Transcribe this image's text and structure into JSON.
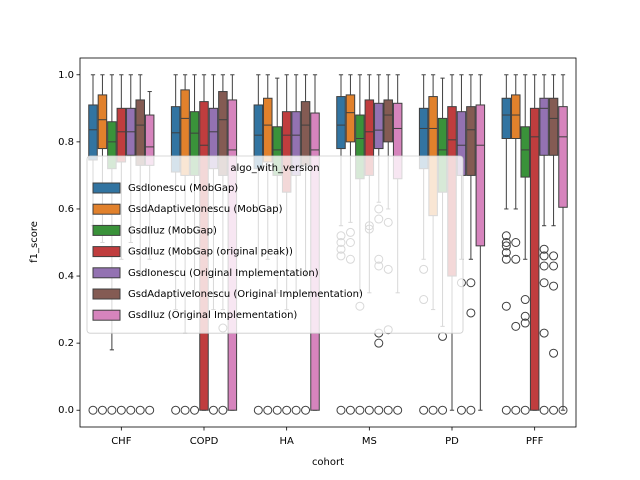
{
  "chart_data": {
    "type": "box",
    "xlabel": "cohort",
    "ylabel": "f1_score",
    "categories": [
      "CHF",
      "COPD",
      "HA",
      "MS",
      "PD",
      "PFF"
    ],
    "ylim": [
      -0.05,
      1.05
    ],
    "yticks": [
      {
        "value": 0,
        "label": "0.0"
      },
      {
        "value": 0.2,
        "label": "0.2"
      },
      {
        "value": 0.4,
        "label": "0.4"
      },
      {
        "value": 0.6,
        "label": "0.6"
      },
      {
        "value": 0.8,
        "label": "0.8"
      },
      {
        "value": 1.0,
        "label": "1.0"
      }
    ],
    "legend_title": "algo_with_version",
    "legend_loc": "center left",
    "series": [
      {
        "name": "GsdIonescu (MobGap)",
        "color": "#3274a1",
        "boxes": [
          {
            "whislo": 0.55,
            "q1": 0.746,
            "med": 0.836,
            "q3": 0.91,
            "whishi": 1.0,
            "fliers": [
              0
            ]
          },
          {
            "whislo": 0.3,
            "q1": 0.71,
            "med": 0.827,
            "q3": 0.905,
            "whishi": 1.0,
            "fliers": [
              0
            ]
          },
          {
            "whislo": 0.4,
            "q1": 0.72,
            "med": 0.82,
            "q3": 0.91,
            "whishi": 1.0,
            "fliers": [
              0
            ]
          },
          {
            "whislo": 0.55,
            "q1": 0.78,
            "med": 0.85,
            "q3": 0.935,
            "whishi": 1.0,
            "fliers": [
              0.52,
              0.5,
              0.48,
              0.46,
              0
            ]
          },
          {
            "whislo": 0.45,
            "q1": 0.72,
            "med": 0.84,
            "q3": 0.9,
            "whishi": 1.0,
            "fliers": [
              0.42,
              0.33,
              0
            ]
          },
          {
            "whislo": 0.6,
            "q1": 0.81,
            "med": 0.88,
            "q3": 0.93,
            "whishi": 1.0,
            "fliers": [
              0.52,
              0.5,
              0.49,
              0.47,
              0.45,
              0.31,
              0
            ]
          }
        ]
      },
      {
        "name": "GsdAdaptiveIonescu (MobGap)",
        "color": "#e1812c",
        "boxes": [
          {
            "whislo": 0.5,
            "q1": 0.78,
            "med": 0.866,
            "q3": 0.94,
            "whishi": 1.0,
            "fliers": [
              0
            ]
          },
          {
            "whislo": 0.23,
            "q1": 0.7,
            "med": 0.87,
            "q3": 0.955,
            "whishi": 1.0,
            "fliers": [
              0
            ]
          },
          {
            "whislo": 0.45,
            "q1": 0.74,
            "med": 0.85,
            "q3": 0.93,
            "whishi": 1.0,
            "fliers": [
              0
            ]
          },
          {
            "whislo": 0.56,
            "q1": 0.8,
            "med": 0.887,
            "q3": 0.94,
            "whishi": 1.0,
            "fliers": [
              0.53,
              0.5,
              0.45,
              0
            ]
          },
          {
            "whislo": 0.3,
            "q1": 0.58,
            "med": 0.84,
            "q3": 0.935,
            "whishi": 1.0,
            "fliers": [
              0
            ]
          },
          {
            "whislo": 0.6,
            "q1": 0.81,
            "med": 0.88,
            "q3": 0.94,
            "whishi": 1.0,
            "fliers": [
              0.5,
              0.45,
              0.25,
              0
            ]
          }
        ]
      },
      {
        "name": "GsdIluz (MobGap)",
        "color": "#3a923a",
        "boxes": [
          {
            "whislo": 0.18,
            "q1": 0.72,
            "med": 0.8,
            "q3": 0.86,
            "whishi": 1.0,
            "fliers": [
              0
            ]
          },
          {
            "whislo": 0.35,
            "q1": 0.7,
            "med": 0.826,
            "q3": 0.89,
            "whishi": 1.0,
            "fliers": [
              0
            ]
          },
          {
            "whislo": 0.35,
            "q1": 0.7,
            "med": 0.776,
            "q3": 0.845,
            "whishi": 0.99,
            "fliers": [
              0
            ]
          },
          {
            "whislo": 0.35,
            "q1": 0.69,
            "med": 0.81,
            "q3": 0.88,
            "whishi": 1.0,
            "fliers": [
              0.31,
              0
            ]
          },
          {
            "whislo": 0.25,
            "q1": 0.65,
            "med": 0.776,
            "q3": 0.87,
            "whishi": 0.99,
            "fliers": [
              0.22,
              0
            ]
          },
          {
            "whislo": 0.45,
            "q1": 0.695,
            "med": 0.776,
            "q3": 0.845,
            "whishi": 1.0,
            "fliers": [
              0.33,
              0.28,
              0.26,
              0
            ]
          }
        ]
      },
      {
        "name": "GsdIluz (MobGap (original peak))",
        "color": "#c03d3e",
        "boxes": [
          {
            "whislo": 0.45,
            "q1": 0.74,
            "med": 0.83,
            "q3": 0.9,
            "whishi": 1.0,
            "fliers": [
              0
            ]
          },
          {
            "whislo": 0,
            "q1": 0,
            "med": 0.79,
            "q3": 0.92,
            "whishi": 1.0,
            "fliers": []
          },
          {
            "whislo": 0.3,
            "q1": 0.65,
            "med": 0.82,
            "q3": 0.89,
            "whishi": 1.0,
            "fliers": [
              0
            ]
          },
          {
            "whislo": 0.35,
            "q1": 0.7,
            "med": 0.83,
            "q3": 0.925,
            "whishi": 1.0,
            "fliers": [
              0.55,
              0.54,
              0
            ]
          },
          {
            "whislo": 0,
            "q1": 0.4,
            "med": 0.806,
            "q3": 0.905,
            "whishi": 1.0,
            "fliers": []
          },
          {
            "whislo": 0,
            "q1": 0,
            "med": 0.815,
            "q3": 0.9,
            "whishi": 1.0,
            "fliers": []
          }
        ]
      },
      {
        "name": "GsdIonescu (Original Implementation)",
        "color": "#9372b2",
        "boxes": [
          {
            "whislo": 0.5,
            "q1": 0.76,
            "med": 0.83,
            "q3": 0.9,
            "whishi": 1.0,
            "fliers": [
              0
            ]
          },
          {
            "whislo": 0.3,
            "q1": 0.72,
            "med": 0.83,
            "q3": 0.9,
            "whishi": 1.0,
            "fliers": [
              0
            ]
          },
          {
            "whislo": 0.35,
            "q1": 0.7,
            "med": 0.82,
            "q3": 0.89,
            "whishi": 1.0,
            "fliers": [
              0
            ]
          },
          {
            "whislo": 0.62,
            "q1": 0.78,
            "med": 0.835,
            "q3": 0.915,
            "whishi": 1.0,
            "fliers": [
              0.6,
              0.57,
              0.45,
              0.43,
              0.23,
              0.2,
              0
            ]
          },
          {
            "whislo": 0.45,
            "q1": 0.7,
            "med": 0.79,
            "q3": 0.89,
            "whishi": 1.0,
            "fliers": [
              0.38,
              0
            ]
          },
          {
            "whislo": 0.55,
            "q1": 0.76,
            "med": 0.9,
            "q3": 0.93,
            "whishi": 1.0,
            "fliers": [
              0.48,
              0.46,
              0.43,
              0.38,
              0.23,
              0
            ]
          }
        ]
      },
      {
        "name": "GsdAdaptiveIonescu (Original Implementation)",
        "color": "#845b53",
        "boxes": [
          {
            "whislo": 0.4,
            "q1": 0.73,
            "med": 0.85,
            "q3": 0.925,
            "whishi": 1.0,
            "fliers": [
              0
            ]
          },
          {
            "whislo": 0.3,
            "q1": 0.7,
            "med": 0.866,
            "q3": 0.95,
            "whishi": 1.0,
            "fliers": [
              0.245,
              0
            ]
          },
          {
            "whislo": 0.4,
            "q1": 0.73,
            "med": 0.85,
            "q3": 0.92,
            "whishi": 1.0,
            "fliers": [
              0
            ]
          },
          {
            "whislo": 0.6,
            "q1": 0.8,
            "med": 0.88,
            "q3": 0.925,
            "whishi": 1.0,
            "fliers": [
              0.56,
              0.42,
              0.24,
              0
            ]
          },
          {
            "whislo": 0.45,
            "q1": 0.7,
            "med": 0.836,
            "q3": 0.905,
            "whishi": 1.0,
            "fliers": [
              0.38,
              0.29,
              0
            ]
          },
          {
            "whislo": 0.55,
            "q1": 0.76,
            "med": 0.87,
            "q3": 0.93,
            "whishi": 1.0,
            "fliers": [
              0.46,
              0.43,
              0.37,
              0.17,
              0
            ]
          }
        ]
      },
      {
        "name": "GsdIluz (Original Implementation)",
        "color": "#d684bd",
        "boxes": [
          {
            "whislo": 0.45,
            "q1": 0.73,
            "med": 0.785,
            "q3": 0.88,
            "whishi": 0.95,
            "fliers": [
              0
            ]
          },
          {
            "whislo": 0,
            "q1": 0,
            "med": 0.776,
            "q3": 0.925,
            "whishi": 1.0,
            "fliers": []
          },
          {
            "whislo": 0,
            "q1": 0,
            "med": 0.776,
            "q3": 0.886,
            "whishi": 1.0,
            "fliers": []
          },
          {
            "whislo": 0.35,
            "q1": 0.69,
            "med": 0.84,
            "q3": 0.915,
            "whishi": 1.0,
            "fliers": [
              0
            ]
          },
          {
            "whislo": 0,
            "q1": 0.49,
            "med": 0.79,
            "q3": 0.91,
            "whishi": 1.0,
            "fliers": []
          },
          {
            "whislo": 0,
            "q1": 0.605,
            "med": 0.815,
            "q3": 0.905,
            "whishi": 1.0,
            "fliers": [
              0
            ]
          }
        ]
      }
    ]
  }
}
